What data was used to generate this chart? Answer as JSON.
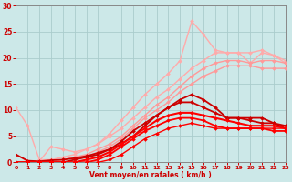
{
  "xlabel": "Vent moyen/en rafales ( km/h )",
  "xlim": [
    0,
    23
  ],
  "ylim": [
    0,
    30
  ],
  "yticks": [
    0,
    5,
    10,
    15,
    20,
    25,
    30
  ],
  "xticks": [
    0,
    1,
    2,
    3,
    4,
    5,
    6,
    7,
    8,
    9,
    10,
    11,
    12,
    13,
    14,
    15,
    16,
    17,
    18,
    19,
    20,
    21,
    22,
    23
  ],
  "background_color": "#cce8e8",
  "grid_color": "#aacccc",
  "lines": [
    {
      "x": [
        0,
        1,
        2,
        3,
        4,
        5,
        6,
        7,
        8,
        9,
        10,
        11,
        12,
        13,
        14,
        15,
        16,
        17,
        18,
        19,
        20,
        21,
        22,
        23
      ],
      "y": [
        1.5,
        0.2,
        0.2,
        3.0,
        2.5,
        2.0,
        2.5,
        3.5,
        5.5,
        8.0,
        10.5,
        13.0,
        15.0,
        17.0,
        19.5,
        27.0,
        24.5,
        21.5,
        21.0,
        21.0,
        21.0,
        21.5,
        20.5,
        19.5
      ],
      "color": "#ffaaaa",
      "lw": 1.0,
      "marker": "D",
      "ms": 2.0,
      "zorder": 2
    },
    {
      "x": [
        0,
        1,
        2,
        3,
        4,
        5,
        6,
        7,
        8,
        9,
        10,
        11,
        12,
        13,
        14,
        15,
        16,
        17,
        18,
        19,
        20,
        21,
        22,
        23
      ],
      "y": [
        10.5,
        7.0,
        0.5,
        0.5,
        1.0,
        1.5,
        2.5,
        3.5,
        5.0,
        6.5,
        8.5,
        10.5,
        12.5,
        14.0,
        16.0,
        18.0,
        19.5,
        21.0,
        21.0,
        21.0,
        19.0,
        21.0,
        20.5,
        19.0
      ],
      "color": "#ffaaaa",
      "lw": 1.0,
      "marker": "D",
      "ms": 2.0,
      "zorder": 2
    },
    {
      "x": [
        0,
        1,
        2,
        3,
        4,
        5,
        6,
        7,
        8,
        9,
        10,
        11,
        12,
        13,
        14,
        15,
        16,
        17,
        18,
        19,
        20,
        21,
        22,
        23
      ],
      "y": [
        0,
        0,
        0,
        0,
        0.5,
        1.0,
        1.5,
        2.5,
        3.5,
        5.0,
        7.0,
        9.0,
        11.0,
        12.5,
        14.5,
        16.5,
        18.0,
        19.0,
        19.5,
        19.5,
        19.0,
        19.5,
        19.5,
        19.0
      ],
      "color": "#ff9999",
      "lw": 1.0,
      "marker": "D",
      "ms": 2.0,
      "zorder": 3
    },
    {
      "x": [
        0,
        1,
        2,
        3,
        4,
        5,
        6,
        7,
        8,
        9,
        10,
        11,
        12,
        13,
        14,
        15,
        16,
        17,
        18,
        19,
        20,
        21,
        22,
        23
      ],
      "y": [
        0,
        0,
        0,
        0,
        0,
        0.5,
        1.0,
        2.0,
        3.0,
        4.5,
        6.5,
        8.5,
        10.0,
        11.5,
        13.5,
        15.0,
        16.5,
        17.5,
        18.5,
        18.5,
        18.5,
        18.0,
        18.0,
        18.0
      ],
      "color": "#ff9999",
      "lw": 1.0,
      "marker": "D",
      "ms": 2.0,
      "zorder": 3
    },
    {
      "x": [
        0,
        1,
        2,
        3,
        4,
        5,
        6,
        7,
        8,
        9,
        10,
        11,
        12,
        13,
        14,
        15,
        16,
        17,
        18,
        19,
        20,
        21,
        22,
        23
      ],
      "y": [
        1.5,
        0.3,
        0.2,
        0.4,
        0.5,
        0.8,
        1.2,
        1.8,
        2.5,
        3.5,
        5.0,
        7.0,
        9.0,
        10.5,
        12.0,
        13.0,
        12.0,
        10.5,
        8.5,
        8.5,
        8.5,
        8.5,
        7.5,
        6.5
      ],
      "color": "#cc0000",
      "lw": 1.3,
      "marker": "D",
      "ms": 2.0,
      "zorder": 4
    },
    {
      "x": [
        0,
        1,
        2,
        3,
        4,
        5,
        6,
        7,
        8,
        9,
        10,
        11,
        12,
        13,
        14,
        15,
        16,
        17,
        18,
        19,
        20,
        21,
        22,
        23
      ],
      "y": [
        0,
        0,
        0,
        0,
        0,
        0.5,
        1.0,
        1.5,
        2.5,
        4.0,
        6.0,
        7.5,
        9.0,
        10.5,
        11.5,
        11.5,
        10.5,
        9.5,
        8.5,
        8.5,
        8.0,
        7.5,
        7.5,
        7.0
      ],
      "color": "#cc0000",
      "lw": 1.3,
      "marker": "D",
      "ms": 2.0,
      "zorder": 4
    },
    {
      "x": [
        0,
        1,
        2,
        3,
        4,
        5,
        6,
        7,
        8,
        9,
        10,
        11,
        12,
        13,
        14,
        15,
        16,
        17,
        18,
        19,
        20,
        21,
        22,
        23
      ],
      "y": [
        0,
        0,
        0,
        0,
        0,
        0,
        0.5,
        1.0,
        2.0,
        3.5,
        5.0,
        6.5,
        8.0,
        9.0,
        9.5,
        9.5,
        9.0,
        8.5,
        8.0,
        7.5,
        7.0,
        7.0,
        7.0,
        6.5
      ],
      "color": "#ff0000",
      "lw": 1.5,
      "marker": "D",
      "ms": 2.0,
      "zorder": 5
    },
    {
      "x": [
        0,
        1,
        2,
        3,
        4,
        5,
        6,
        7,
        8,
        9,
        10,
        11,
        12,
        13,
        14,
        15,
        16,
        17,
        18,
        19,
        20,
        21,
        22,
        23
      ],
      "y": [
        0,
        0,
        0,
        0,
        0,
        0,
        0,
        0.5,
        1.5,
        3.0,
        4.5,
        6.0,
        7.0,
        8.0,
        8.5,
        8.5,
        8.0,
        7.0,
        6.5,
        6.5,
        6.5,
        6.5,
        6.0,
        6.0
      ],
      "color": "#ff0000",
      "lw": 1.3,
      "marker": "D",
      "ms": 2.0,
      "zorder": 5
    },
    {
      "x": [
        0,
        1,
        2,
        3,
        4,
        5,
        6,
        7,
        8,
        9,
        10,
        11,
        12,
        13,
        14,
        15,
        16,
        17,
        18,
        19,
        20,
        21,
        22,
        23
      ],
      "y": [
        0,
        0,
        0,
        0,
        0,
        0,
        0,
        0,
        0.5,
        1.5,
        3.0,
        4.5,
        5.5,
        6.5,
        7.0,
        7.5,
        7.0,
        6.5,
        6.5,
        6.5,
        6.5,
        6.5,
        6.5,
        6.5
      ],
      "color": "#ff0000",
      "lw": 1.0,
      "marker": "D",
      "ms": 2.0,
      "zorder": 5
    }
  ]
}
